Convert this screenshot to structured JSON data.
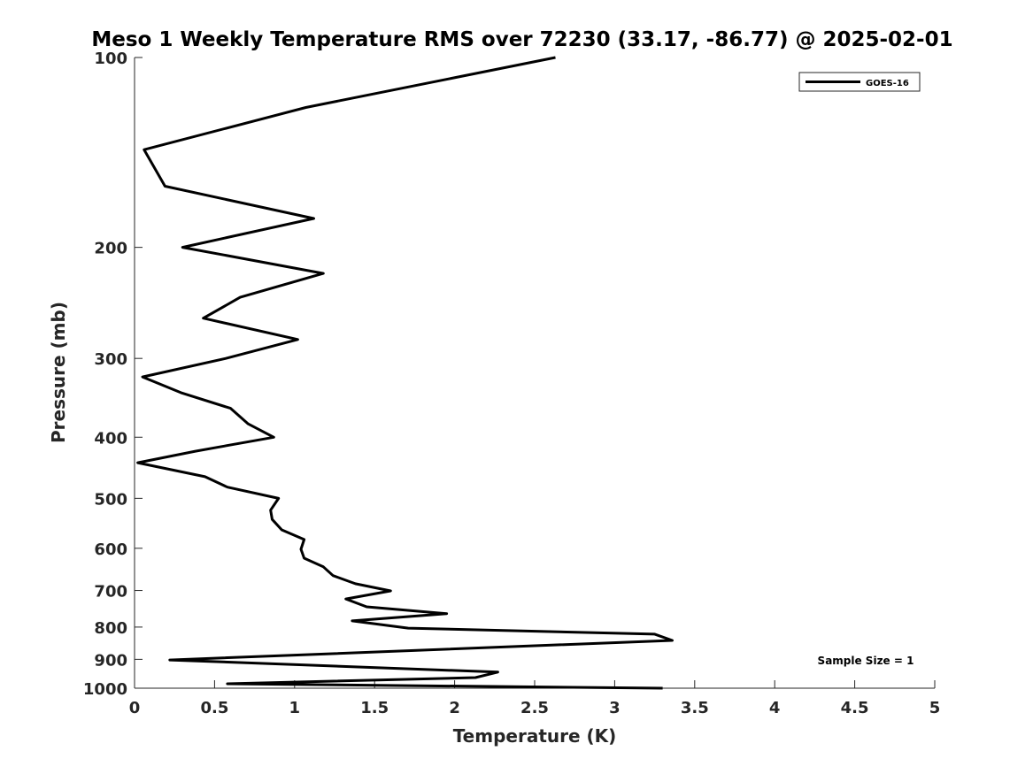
{
  "chart_data": {
    "type": "line",
    "title": "Meso 1 Weekly Temperature RMS over 72230 (33.17, -86.77) @ 2025-02-01",
    "xlabel": "Temperature (K)",
    "ylabel": "Pressure (mb)",
    "xlim": [
      0,
      5
    ],
    "ylim": [
      100,
      1000
    ],
    "yscale": "log",
    "yreversed": true,
    "grid": false,
    "legend_position": "top-right",
    "x_ticks": [
      "0",
      "0.5",
      "1",
      "1.5",
      "2",
      "2.5",
      "3",
      "3.5",
      "4",
      "4.5",
      "5"
    ],
    "y_ticks": [
      "100",
      "200",
      "300",
      "400",
      "500",
      "600",
      "700",
      "800",
      "900",
      "1000"
    ],
    "annotation": "Sample Size = 1",
    "series": [
      {
        "name": "GOES-16",
        "color": "#000000",
        "points": [
          [
            2.63,
            100
          ],
          [
            1.07,
            120
          ],
          [
            0.06,
            140
          ],
          [
            0.19,
            160
          ],
          [
            1.12,
            180
          ],
          [
            0.3,
            200
          ],
          [
            1.18,
            220
          ],
          [
            0.66,
            240
          ],
          [
            0.43,
            259
          ],
          [
            1.02,
            280
          ],
          [
            0.57,
            300
          ],
          [
            0.05,
            321
          ],
          [
            0.29,
            340
          ],
          [
            0.6,
            360
          ],
          [
            0.71,
            381
          ],
          [
            0.87,
            400
          ],
          [
            0.38,
            421
          ],
          [
            0.02,
            439
          ],
          [
            0.44,
            462
          ],
          [
            0.58,
            480
          ],
          [
            0.9,
            500
          ],
          [
            0.85,
            522
          ],
          [
            0.86,
            540
          ],
          [
            0.92,
            561
          ],
          [
            1.06,
            581
          ],
          [
            1.04,
            602
          ],
          [
            1.06,
            622
          ],
          [
            1.18,
            642
          ],
          [
            1.24,
            663
          ],
          [
            1.38,
            683
          ],
          [
            1.6,
            701
          ],
          [
            1.32,
            722
          ],
          [
            1.45,
            743
          ],
          [
            1.95,
            762
          ],
          [
            1.36,
            782
          ],
          [
            1.71,
            803
          ],
          [
            3.25,
            821
          ],
          [
            3.36,
            840
          ],
          [
            0.22,
            902
          ],
          [
            2.27,
            943
          ],
          [
            2.13,
            962
          ],
          [
            0.58,
            984
          ],
          [
            3.3,
            1000
          ]
        ]
      }
    ]
  }
}
